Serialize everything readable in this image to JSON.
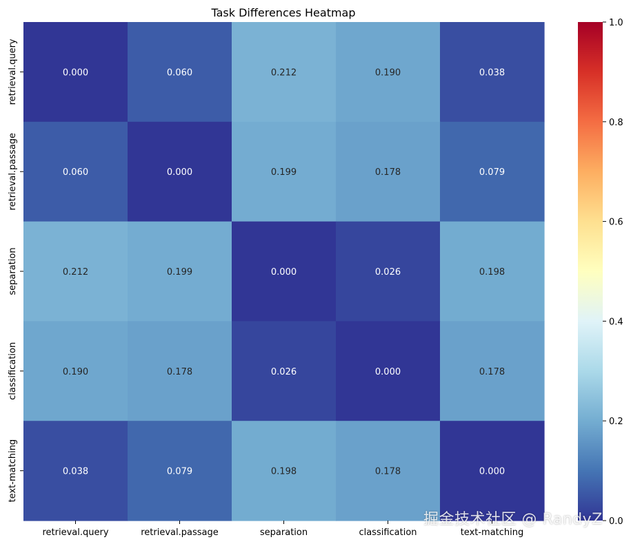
{
  "chart_data": {
    "type": "heatmap",
    "title": "Task Differences Heatmap",
    "x_labels": [
      "retrieval.query",
      "retrieval.passage",
      "separation",
      "classification",
      "text-matching"
    ],
    "y_labels": [
      "retrieval.query",
      "retrieval.passage",
      "separation",
      "classification",
      "text-matching"
    ],
    "values": [
      [
        0.0,
        0.06,
        0.212,
        0.19,
        0.038
      ],
      [
        0.06,
        0.0,
        0.199,
        0.178,
        0.079
      ],
      [
        0.212,
        0.199,
        0.0,
        0.026,
        0.198
      ],
      [
        0.19,
        0.178,
        0.026,
        0.0,
        0.178
      ],
      [
        0.038,
        0.079,
        0.198,
        0.178,
        0.0
      ]
    ],
    "colormap": "RdYlBu_r",
    "vmin": 0.0,
    "vmax": 1.0,
    "colorbar_ticks": [
      0.0,
      0.2,
      0.4,
      0.6,
      0.8,
      1.0
    ],
    "colorbar_tick_labels": [
      "0.0",
      "0.2",
      "0.4",
      "0.6",
      "0.8",
      "1.0"
    ],
    "annotation_format": "3f"
  },
  "watermark": "掘金技术社区 @ RandyZ"
}
